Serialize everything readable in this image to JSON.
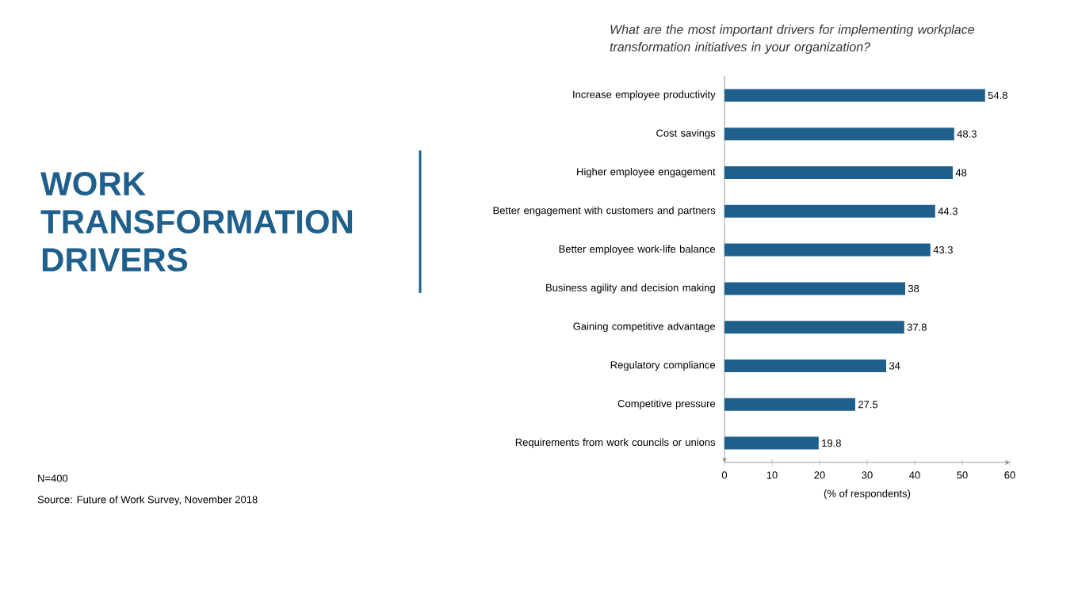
{
  "chart_data": {
    "type": "bar",
    "orientation": "horizontal",
    "title": "WORK TRANSFORMATION DRIVERS",
    "subtitle": "What are the most important drivers for implementing workplace transformation initiatives in your organization?",
    "xlabel": "(% of respondents)",
    "categories": [
      "Increase employee productivity",
      "Cost savings",
      "Higher employee engagement",
      "Better engagement with customers and partners",
      "Better employee work-life balance",
      "Business agility and decision making",
      "Gaining competitive advantage",
      "Regulatory compliance",
      "Competitive pressure",
      "Requirements from work councils or unions"
    ],
    "values": [
      54.8,
      48.3,
      48,
      44.3,
      43.3,
      38,
      37.8,
      34,
      27.5,
      19.8
    ],
    "color": "#1f5f8b",
    "xlim": [
      0,
      60
    ],
    "xticks": [
      0,
      10,
      20,
      30,
      40,
      50,
      60
    ],
    "data_labels": true,
    "annotations": [
      "N=400",
      "Source: Future of Work Survey, November 2018"
    ]
  }
}
